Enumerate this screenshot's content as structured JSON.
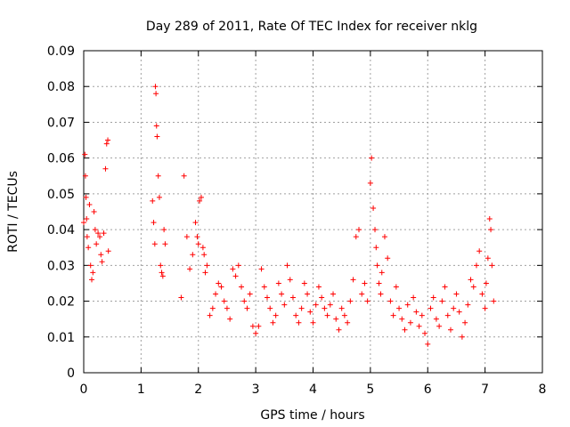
{
  "chart_data": {
    "type": "scatter",
    "title": "Day 289 of 2011, Rate Of TEC Index for receiver nklg",
    "xlabel": "GPS time / hours",
    "ylabel": "ROTI / TECUs",
    "xlim": [
      0,
      8
    ],
    "ylim": [
      0,
      0.09
    ],
    "xticks": [
      0,
      1,
      2,
      3,
      4,
      5,
      6,
      7,
      8
    ],
    "xtick_labels": [
      "0",
      "1",
      "2",
      "3",
      "4",
      "5",
      "6",
      "7",
      "8"
    ],
    "yticks": [
      0,
      0.01,
      0.02,
      0.03,
      0.04,
      0.05,
      0.06,
      0.07,
      0.08,
      0.09
    ],
    "ytick_labels": [
      "0",
      "0.01",
      "0.02",
      "0.03",
      "0.04",
      "0.05",
      "0.06",
      "0.07",
      "0.08",
      "0.09"
    ],
    "grid": true,
    "marker": "+",
    "color": "#ff0000",
    "series": [
      {
        "name": "nklg",
        "x": [
          0.0,
          0.02,
          0.03,
          0.04,
          0.05,
          0.06,
          0.08,
          0.1,
          0.12,
          0.14,
          0.16,
          0.18,
          0.2,
          0.22,
          0.25,
          0.28,
          0.3,
          0.32,
          0.35,
          0.38,
          0.4,
          0.42,
          0.43,
          1.2,
          1.22,
          1.24,
          1.25,
          1.26,
          1.27,
          1.28,
          1.3,
          1.32,
          1.34,
          1.36,
          1.38,
          1.4,
          1.42,
          1.7,
          1.75,
          1.8,
          1.85,
          1.9,
          1.95,
          1.98,
          2.0,
          2.02,
          2.05,
          2.08,
          2.1,
          2.12,
          2.15,
          2.2,
          2.25,
          2.3,
          2.35,
          2.4,
          2.45,
          2.5,
          2.55,
          2.6,
          2.65,
          2.7,
          2.75,
          2.8,
          2.85,
          2.9,
          2.95,
          3.0,
          3.05,
          3.1,
          3.15,
          3.2,
          3.25,
          3.3,
          3.35,
          3.4,
          3.45,
          3.5,
          3.55,
          3.6,
          3.65,
          3.7,
          3.75,
          3.8,
          3.85,
          3.9,
          3.95,
          4.0,
          4.05,
          4.1,
          4.15,
          4.2,
          4.25,
          4.3,
          4.35,
          4.4,
          4.45,
          4.5,
          4.55,
          4.6,
          4.65,
          4.7,
          4.75,
          4.8,
          4.85,
          4.9,
          4.95,
          5.0,
          5.02,
          5.05,
          5.08,
          5.1,
          5.12,
          5.15,
          5.18,
          5.2,
          5.25,
          5.3,
          5.35,
          5.4,
          5.45,
          5.5,
          5.55,
          5.6,
          5.65,
          5.7,
          5.75,
          5.8,
          5.85,
          5.9,
          5.95,
          6.0,
          6.05,
          6.1,
          6.15,
          6.2,
          6.25,
          6.3,
          6.35,
          6.4,
          6.45,
          6.5,
          6.55,
          6.6,
          6.65,
          6.7,
          6.75,
          6.8,
          6.85,
          6.9,
          6.95,
          7.0,
          7.02,
          7.05,
          7.08,
          7.1,
          7.12,
          7.15
        ],
        "y": [
          0.042,
          0.061,
          0.055,
          0.049,
          0.043,
          0.038,
          0.035,
          0.047,
          0.03,
          0.026,
          0.028,
          0.045,
          0.04,
          0.036,
          0.039,
          0.038,
          0.033,
          0.031,
          0.039,
          0.057,
          0.064,
          0.065,
          0.034,
          0.048,
          0.042,
          0.036,
          0.08,
          0.078,
          0.069,
          0.066,
          0.055,
          0.049,
          0.03,
          0.028,
          0.027,
          0.04,
          0.036,
          0.021,
          0.055,
          0.038,
          0.029,
          0.033,
          0.042,
          0.038,
          0.036,
          0.048,
          0.049,
          0.035,
          0.033,
          0.028,
          0.03,
          0.016,
          0.018,
          0.022,
          0.025,
          0.024,
          0.02,
          0.018,
          0.015,
          0.029,
          0.027,
          0.03,
          0.024,
          0.02,
          0.018,
          0.022,
          0.013,
          0.011,
          0.013,
          0.029,
          0.024,
          0.021,
          0.018,
          0.014,
          0.016,
          0.025,
          0.022,
          0.019,
          0.03,
          0.026,
          0.021,
          0.016,
          0.014,
          0.018,
          0.025,
          0.022,
          0.017,
          0.014,
          0.019,
          0.024,
          0.021,
          0.018,
          0.016,
          0.019,
          0.022,
          0.015,
          0.012,
          0.018,
          0.016,
          0.014,
          0.02,
          0.026,
          0.038,
          0.04,
          0.022,
          0.025,
          0.02,
          0.053,
          0.06,
          0.046,
          0.04,
          0.035,
          0.03,
          0.025,
          0.022,
          0.028,
          0.038,
          0.032,
          0.02,
          0.016,
          0.024,
          0.018,
          0.015,
          0.012,
          0.019,
          0.014,
          0.021,
          0.017,
          0.013,
          0.016,
          0.011,
          0.008,
          0.018,
          0.021,
          0.015,
          0.013,
          0.02,
          0.024,
          0.016,
          0.012,
          0.018,
          0.022,
          0.017,
          0.01,
          0.014,
          0.019,
          0.026,
          0.024,
          0.03,
          0.034,
          0.022,
          0.018,
          0.025,
          0.032,
          0.043,
          0.04,
          0.03,
          0.02
        ]
      }
    ]
  }
}
